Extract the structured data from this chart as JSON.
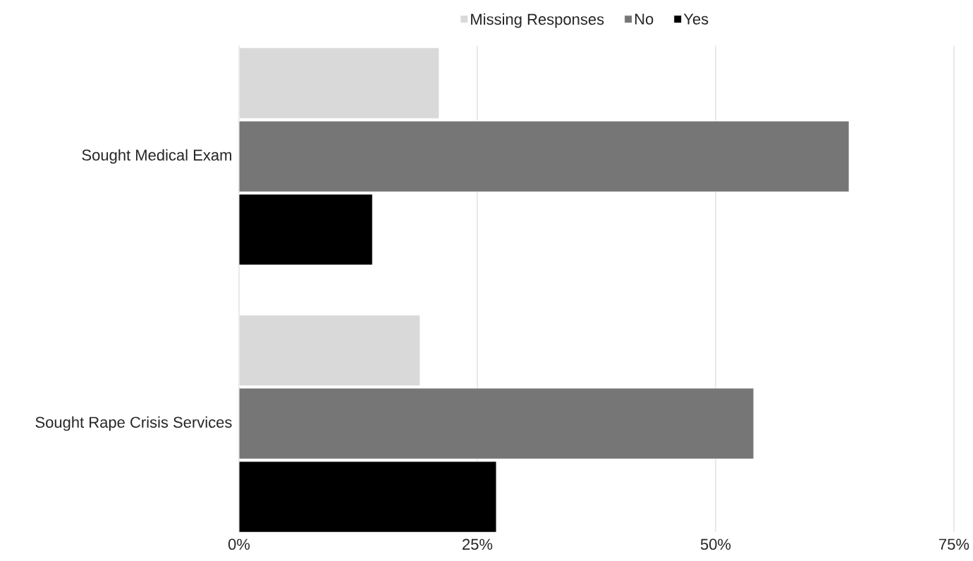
{
  "chart_data": {
    "type": "bar",
    "orientation": "horizontal",
    "categories": [
      "Sought Medical Exam",
      "Sought Rape Crisis Services"
    ],
    "series": [
      {
        "name": "Missing Responses",
        "color": "#d9d9d9",
        "values": [
          21,
          19
        ]
      },
      {
        "name": "No",
        "color": "#767676",
        "values": [
          64,
          54
        ]
      },
      {
        "name": "Yes",
        "color": "#000000",
        "values": [
          14,
          27
        ]
      }
    ],
    "xlim": [
      0,
      75
    ],
    "xticks": [
      {
        "value": 0,
        "label": "0%"
      },
      {
        "value": 25,
        "label": "25%"
      },
      {
        "value": 50,
        "label": "50%"
      },
      {
        "value": 75,
        "label": "75%"
      }
    ],
    "grid": "x",
    "legend": "top"
  }
}
